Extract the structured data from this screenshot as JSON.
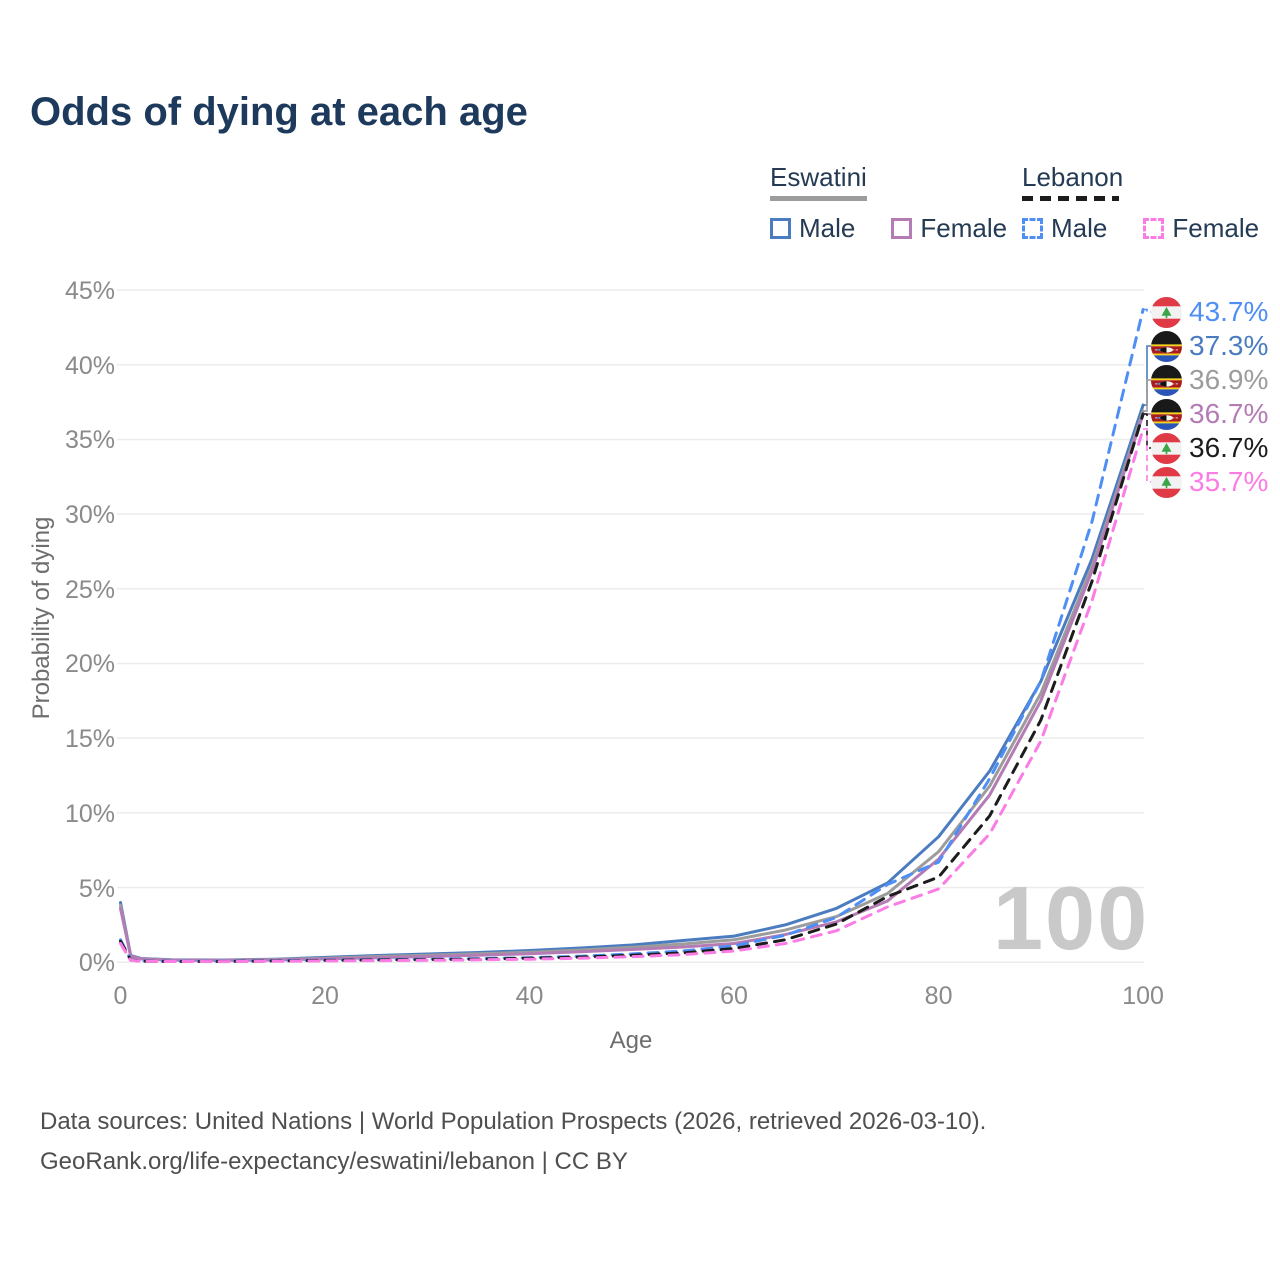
{
  "title": "Odds of dying at each age",
  "legend": {
    "groups": [
      {
        "name": "Eswatini",
        "line_color": "#9c9c9c",
        "dashed": false,
        "items": [
          {
            "label": "Male",
            "color": "#4b7cc0",
            "dashed": false
          },
          {
            "label": "Female",
            "color": "#b47bb4",
            "dashed": false
          }
        ]
      },
      {
        "name": "Lebanon",
        "line_color": "#1c1c1c",
        "dashed": true,
        "items": [
          {
            "label": "Male",
            "color": "#4e8ef5",
            "dashed": true
          },
          {
            "label": "Female",
            "color": "#fb7ce5",
            "dashed": true
          }
        ]
      }
    ]
  },
  "chart_data": {
    "type": "line",
    "title": "Odds of dying at each age",
    "xlabel": "Age",
    "ylabel": "Probability of dying",
    "xlim": [
      0,
      100
    ],
    "ylim": [
      0,
      45
    ],
    "x_ticks": [
      0,
      20,
      40,
      60,
      80,
      100
    ],
    "y_ticks": [
      0,
      5,
      10,
      15,
      20,
      25,
      30,
      35,
      40,
      45
    ],
    "y_tick_suffix": "%",
    "grid": true,
    "legend_position": "top-right",
    "x": [
      0,
      1,
      2,
      5,
      10,
      15,
      20,
      25,
      30,
      35,
      40,
      45,
      50,
      55,
      60,
      65,
      70,
      75,
      80,
      85,
      90,
      95,
      100
    ],
    "series": [
      {
        "name": "Eswatini Male",
        "color": "#4b7cc0",
        "dashed": false,
        "flag": "eswatini",
        "end_label": "37.3%",
        "values": [
          4.0,
          0.45,
          0.25,
          0.17,
          0.15,
          0.2,
          0.32,
          0.45,
          0.55,
          0.65,
          0.78,
          0.95,
          1.15,
          1.45,
          1.75,
          2.5,
          3.6,
          5.3,
          8.4,
          12.8,
          18.8,
          27.0,
          37.3
        ]
      },
      {
        "name": "Eswatini Both Sexes",
        "color": "#9c9c9c",
        "dashed": false,
        "flag": "eswatini",
        "end_label": "36.9%",
        "values": [
          3.8,
          0.42,
          0.23,
          0.15,
          0.13,
          0.18,
          0.27,
          0.38,
          0.47,
          0.56,
          0.67,
          0.82,
          1.0,
          1.22,
          1.5,
          2.15,
          3.05,
          4.6,
          7.4,
          11.8,
          18.0,
          26.5,
          36.9
        ]
      },
      {
        "name": "Eswatini Female",
        "color": "#b47bb4",
        "dashed": false,
        "flag": "eswatini",
        "end_label": "36.7%",
        "values": [
          3.6,
          0.4,
          0.22,
          0.14,
          0.12,
          0.15,
          0.22,
          0.3,
          0.38,
          0.47,
          0.57,
          0.7,
          0.85,
          1.02,
          1.25,
          1.85,
          2.7,
          4.1,
          6.9,
          11.2,
          17.5,
          26.2,
          36.7
        ]
      },
      {
        "name": "Lebanon Male",
        "color": "#4e8ef5",
        "dashed": true,
        "flag": "lebanon",
        "end_label": "43.7%",
        "values": [
          1.5,
          0.16,
          0.08,
          0.06,
          0.06,
          0.1,
          0.14,
          0.17,
          0.2,
          0.24,
          0.3,
          0.4,
          0.55,
          0.75,
          1.1,
          1.8,
          3.0,
          5.2,
          6.7,
          12.3,
          18.8,
          29.5,
          43.7
        ]
      },
      {
        "name": "Lebanon Both Sexes",
        "color": "#1c1c1c",
        "dashed": true,
        "flag": "lebanon",
        "end_label": "36.7%",
        "values": [
          1.4,
          0.15,
          0.07,
          0.05,
          0.05,
          0.08,
          0.12,
          0.15,
          0.17,
          0.2,
          0.26,
          0.34,
          0.46,
          0.62,
          0.92,
          1.5,
          2.55,
          4.4,
          5.7,
          9.8,
          16.2,
          25.5,
          36.7
        ]
      },
      {
        "name": "Lebanon Female",
        "color": "#fb7ce5",
        "dashed": true,
        "flag": "lebanon",
        "end_label": "35.7%",
        "values": [
          1.25,
          0.13,
          0.06,
          0.05,
          0.04,
          0.06,
          0.09,
          0.11,
          0.13,
          0.16,
          0.2,
          0.27,
          0.37,
          0.5,
          0.75,
          1.25,
          2.1,
          3.7,
          4.9,
          8.6,
          14.8,
          24.2,
          35.7
        ]
      }
    ]
  },
  "watermark": "100",
  "footer": {
    "lines": [
      "Data sources: United Nations | World Population Prospects (2026, retrieved 2026-03-10).",
      "GeoRank.org/life-expectancy/eswatini/lebanon | CC BY"
    ]
  },
  "colors": {
    "title": "#1d3a5c",
    "axis_text": "#8a8a8a",
    "gridline": "#ececec",
    "watermark": "#c9c9c9",
    "footer_text": "#4f4f4f",
    "lebanon_flag_red": "#e03a47",
    "lebanon_flag_green": "#3aa648",
    "eswatini_flag_black": "#191919",
    "eswatini_flag_yellow": "#f5d216",
    "eswatini_flag_crimson": "#a81c1f",
    "eswatini_flag_blue": "#2b55b6"
  }
}
